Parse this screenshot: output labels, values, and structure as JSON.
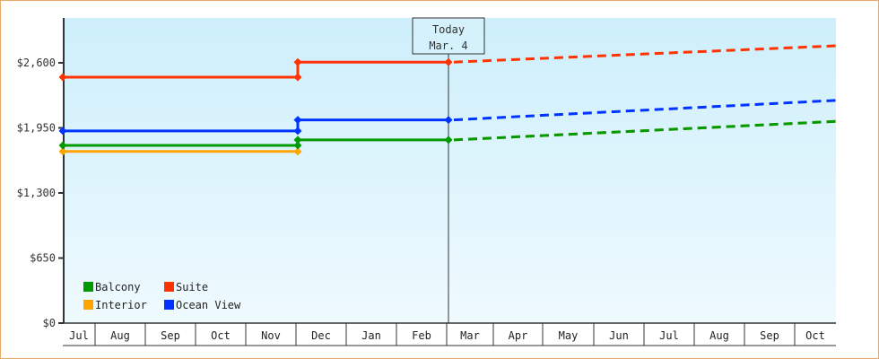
{
  "chart_data": {
    "type": "line",
    "title": "",
    "xlabel": "",
    "ylabel": "",
    "ylim": [
      0,
      3040
    ],
    "yticks": [
      {
        "value": 0,
        "label": "$0"
      },
      {
        "value": 650,
        "label": "$650"
      },
      {
        "value": 1300,
        "label": "$1,300"
      },
      {
        "value": 1950,
        "label": "$1,950"
      },
      {
        "value": 2600,
        "label": "$2,600"
      }
    ],
    "categories": [
      "Jul",
      "Aug",
      "Sep",
      "Oct",
      "Nov",
      "Dec",
      "Jan",
      "Feb",
      "Mar",
      "Apr",
      "May",
      "Jun",
      "Jul",
      "Aug",
      "Sep",
      "Oct"
    ],
    "today_marker": {
      "line1": "Today",
      "line2": "Mar. 4"
    },
    "legend": [
      {
        "name": "Balcony",
        "color": "#009900"
      },
      {
        "name": "Suite",
        "color": "#ff3300"
      },
      {
        "name": "Interior",
        "color": "#ffa500"
      },
      {
        "name": "Ocean View",
        "color": "#0033ff"
      }
    ],
    "series": [
      {
        "name": "Suite",
        "color": "#ff3300",
        "historical": [
          {
            "date": "Jul 1",
            "value": 2457
          },
          {
            "date": "Dec 1",
            "value": 2457
          },
          {
            "date": "Dec 1",
            "value": 2607
          },
          {
            "date": "Mar 4",
            "value": 2607
          }
        ],
        "forecast": [
          {
            "date": "Mar 4",
            "value": 2607
          },
          {
            "date": "Oct 31",
            "value": 2770
          }
        ]
      },
      {
        "name": "Ocean View",
        "color": "#0033ff",
        "historical": [
          {
            "date": "Jul 1",
            "value": 1920
          },
          {
            "date": "Dec 1",
            "value": 1920
          },
          {
            "date": "Dec 1",
            "value": 2030
          },
          {
            "date": "Mar 4",
            "value": 2030
          }
        ],
        "forecast": [
          {
            "date": "Mar 4",
            "value": 2030
          },
          {
            "date": "Oct 31",
            "value": 2225
          }
        ]
      },
      {
        "name": "Balcony",
        "color": "#009900",
        "historical": [
          {
            "date": "Jul 1",
            "value": 1775
          },
          {
            "date": "Dec 1",
            "value": 1775
          },
          {
            "date": "Dec 1",
            "value": 1830
          },
          {
            "date": "Mar 4",
            "value": 1830
          }
        ],
        "forecast": [
          {
            "date": "Mar 4",
            "value": 1830
          },
          {
            "date": "Oct 31",
            "value": 2015
          }
        ]
      },
      {
        "name": "Interior",
        "color": "#ffa500",
        "historical": [
          {
            "date": "Jul 1",
            "value": 1715
          },
          {
            "date": "Dec 1",
            "value": 1715
          }
        ],
        "forecast": [
          {
            "date": "Mar 4",
            "value": 1830
          },
          {
            "date": "Oct 31",
            "value": 2015
          }
        ]
      }
    ]
  }
}
